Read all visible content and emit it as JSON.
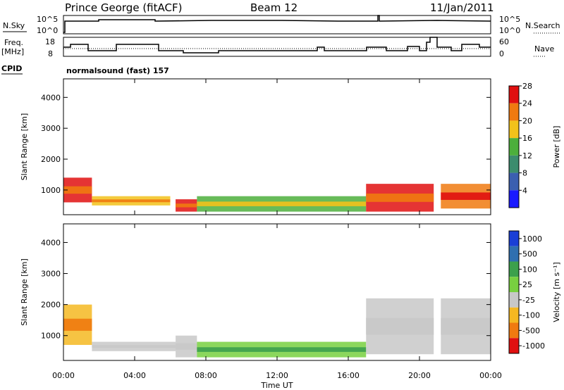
{
  "header": {
    "site": "Prince George (fitACF)",
    "beam": "Beam 12",
    "date": "11/Jan/2011"
  },
  "left_labels": {
    "nsky": "N.Sky",
    "freq_line1": "Freq.",
    "freq_line2": "[MHz]",
    "cpid": "CPID",
    "nsky_top": "10^5",
    "nsky_bottom": "10^0",
    "freq_top": "18",
    "freq_bottom": "8"
  },
  "right_labels": {
    "nsearch": "N.Search",
    "nave": "Nave",
    "nsearch_top": "10^5",
    "nsearch_bottom": "10^0",
    "nave_top": "60",
    "nave_bottom": "0"
  },
  "cpid_text": "normalsound (fast) 157",
  "xaxis": {
    "label": "Time UT",
    "ticks": [
      "00:00",
      "04:00",
      "08:00",
      "12:00",
      "16:00",
      "20:00",
      "00:00"
    ]
  },
  "chart_data": [
    {
      "type": "heatmap",
      "ylabel": "Slant Range [km]",
      "yticks": [
        "1000",
        "2000",
        "3000",
        "4000"
      ],
      "ylim": [
        200,
        4600
      ],
      "xlim": [
        0,
        24
      ],
      "colorbar": {
        "label": "Power [dB]",
        "ticks": [
          "4",
          "8",
          "12",
          "16",
          "20",
          "24",
          "28"
        ],
        "colors": [
          "#1a1aff",
          "#3b5fb0",
          "#3c8c6e",
          "#4caf3c",
          "#f2c21b",
          "#f07a10",
          "#e01010"
        ]
      },
      "regions": [
        {
          "t0": 0.0,
          "t1": 1.6,
          "r0": 600,
          "r1": 1400,
          "level": "high"
        },
        {
          "t0": 1.6,
          "t1": 6.0,
          "r0": 500,
          "r1": 800,
          "level": "medium"
        },
        {
          "t0": 6.3,
          "t1": 7.5,
          "r0": 300,
          "r1": 700,
          "level": "high"
        },
        {
          "t0": 7.5,
          "t1": 17.0,
          "r0": 300,
          "r1": 800,
          "level": "medium"
        },
        {
          "t0": 17.0,
          "t1": 20.8,
          "r0": 300,
          "r1": 1200,
          "level": "high"
        },
        {
          "t0": 21.2,
          "t1": 24.0,
          "r0": 400,
          "r1": 1200,
          "level": "high"
        }
      ]
    },
    {
      "type": "heatmap",
      "ylabel": "Slant Range [km]",
      "yticks": [
        "1000",
        "2000",
        "3000",
        "4000"
      ],
      "ylim": [
        200,
        4600
      ],
      "xlim": [
        0,
        24
      ],
      "colorbar": {
        "label": "Velocity [m s⁻¹]",
        "ticks": [
          "1000",
          "500",
          "100",
          "25",
          "-25",
          "-100",
          "-500",
          "-1000"
        ],
        "colors": [
          "#1a3fd6",
          "#2f6fb0",
          "#3ca04c",
          "#78d040",
          "#c8c8c8",
          "#f5b822",
          "#f07a10",
          "#e01010"
        ]
      },
      "regions": [
        {
          "t0": 0.0,
          "t1": 1.6,
          "r0": 700,
          "r1": 2000,
          "level": "negative"
        },
        {
          "t0": 1.6,
          "t1": 6.3,
          "r0": 500,
          "r1": 800,
          "level": "near-zero"
        },
        {
          "t0": 6.3,
          "t1": 7.5,
          "r0": 300,
          "r1": 1000,
          "level": "near-zero"
        },
        {
          "t0": 7.5,
          "t1": 17.0,
          "r0": 300,
          "r1": 800,
          "level": "positive"
        },
        {
          "t0": 17.0,
          "t1": 20.8,
          "r0": 400,
          "r1": 2200,
          "level": "near-zero"
        },
        {
          "t0": 21.2,
          "t1": 24.0,
          "r0": 400,
          "r1": 2200,
          "level": "near-zero"
        }
      ]
    }
  ]
}
